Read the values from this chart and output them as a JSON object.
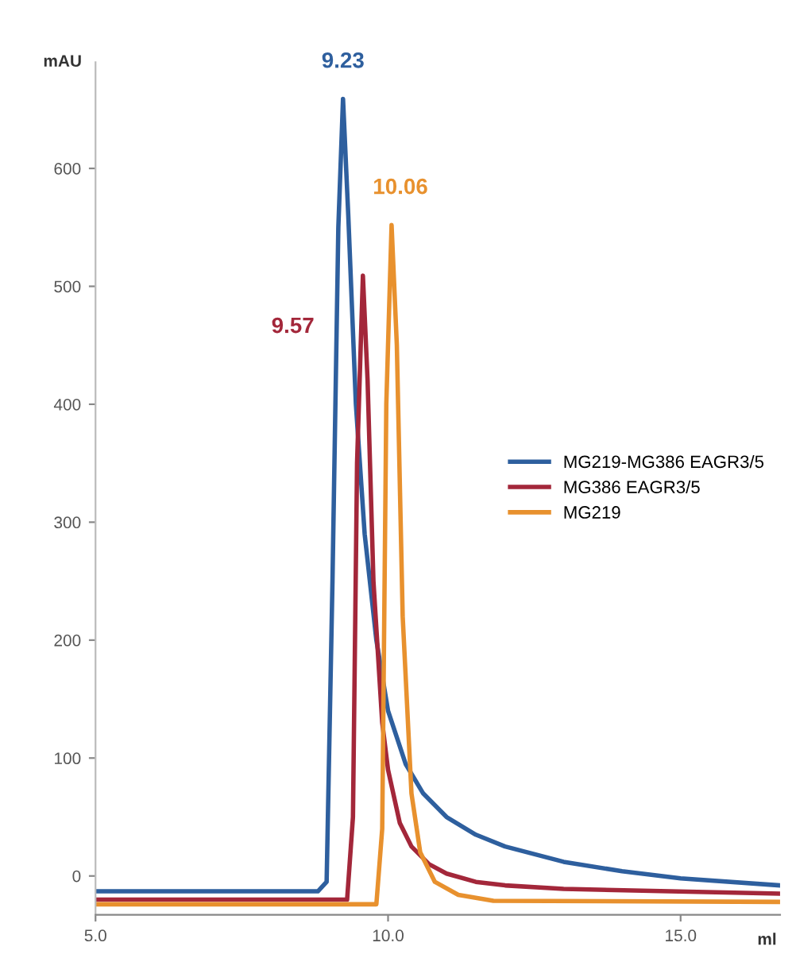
{
  "chart_data": {
    "type": "line",
    "xlabel": "ml",
    "ylabel": "mAU",
    "xlim": [
      5,
      16.7
    ],
    "ylim": [
      -33,
      690
    ],
    "xticks": [
      {
        "value": 5,
        "label": "5.0"
      },
      {
        "value": 10,
        "label": "10.0"
      },
      {
        "value": 15,
        "label": "15.0"
      }
    ],
    "yticks": [
      0,
      100,
      200,
      300,
      400,
      500,
      600
    ],
    "grid": false,
    "legend": "right",
    "marker": "none",
    "line_style": "solid",
    "series": [
      {
        "name": "MG219-MG386 EAGR3/5",
        "color": "#2e5f9e",
        "x": [
          5,
          8.8,
          8.95,
          9.05,
          9.15,
          9.23,
          9.32,
          9.45,
          9.6,
          9.8,
          10.0,
          10.3,
          10.6,
          11.0,
          11.5,
          12.0,
          13.0,
          14.0,
          15.0,
          16.7
        ],
        "values": [
          -13,
          -13,
          -5,
          250,
          550,
          659,
          560,
          400,
          290,
          200,
          140,
          95,
          70,
          50,
          35,
          25,
          12,
          4,
          -2,
          -8
        ]
      },
      {
        "name": "MG386 EAGR3/5",
        "color": "#a3273a",
        "x": [
          5,
          9.3,
          9.4,
          9.47,
          9.57,
          9.65,
          9.75,
          9.9,
          10.0,
          10.2,
          10.4,
          10.7,
          11.0,
          11.5,
          12.0,
          13.0,
          16.7
        ],
        "values": [
          -20,
          -20,
          50,
          350,
          509,
          420,
          250,
          130,
          90,
          45,
          25,
          10,
          2,
          -5,
          -8,
          -11,
          -15
        ]
      },
      {
        "name": "MG219",
        "color": "#e8912e",
        "x": [
          5,
          9.8,
          9.9,
          9.97,
          10.06,
          10.15,
          10.25,
          10.4,
          10.55,
          10.8,
          11.2,
          11.8,
          16.7
        ],
        "values": [
          -24,
          -24,
          40,
          400,
          552,
          450,
          220,
          70,
          20,
          -5,
          -16,
          -21,
          -22
        ]
      }
    ],
    "annotations": [
      {
        "text": "9.23",
        "x": 9.23,
        "y": 659
      },
      {
        "text": "9.57",
        "x": 9.57,
        "y": 509
      },
      {
        "text": "10.06",
        "x": 10.06,
        "y": 552
      }
    ]
  }
}
